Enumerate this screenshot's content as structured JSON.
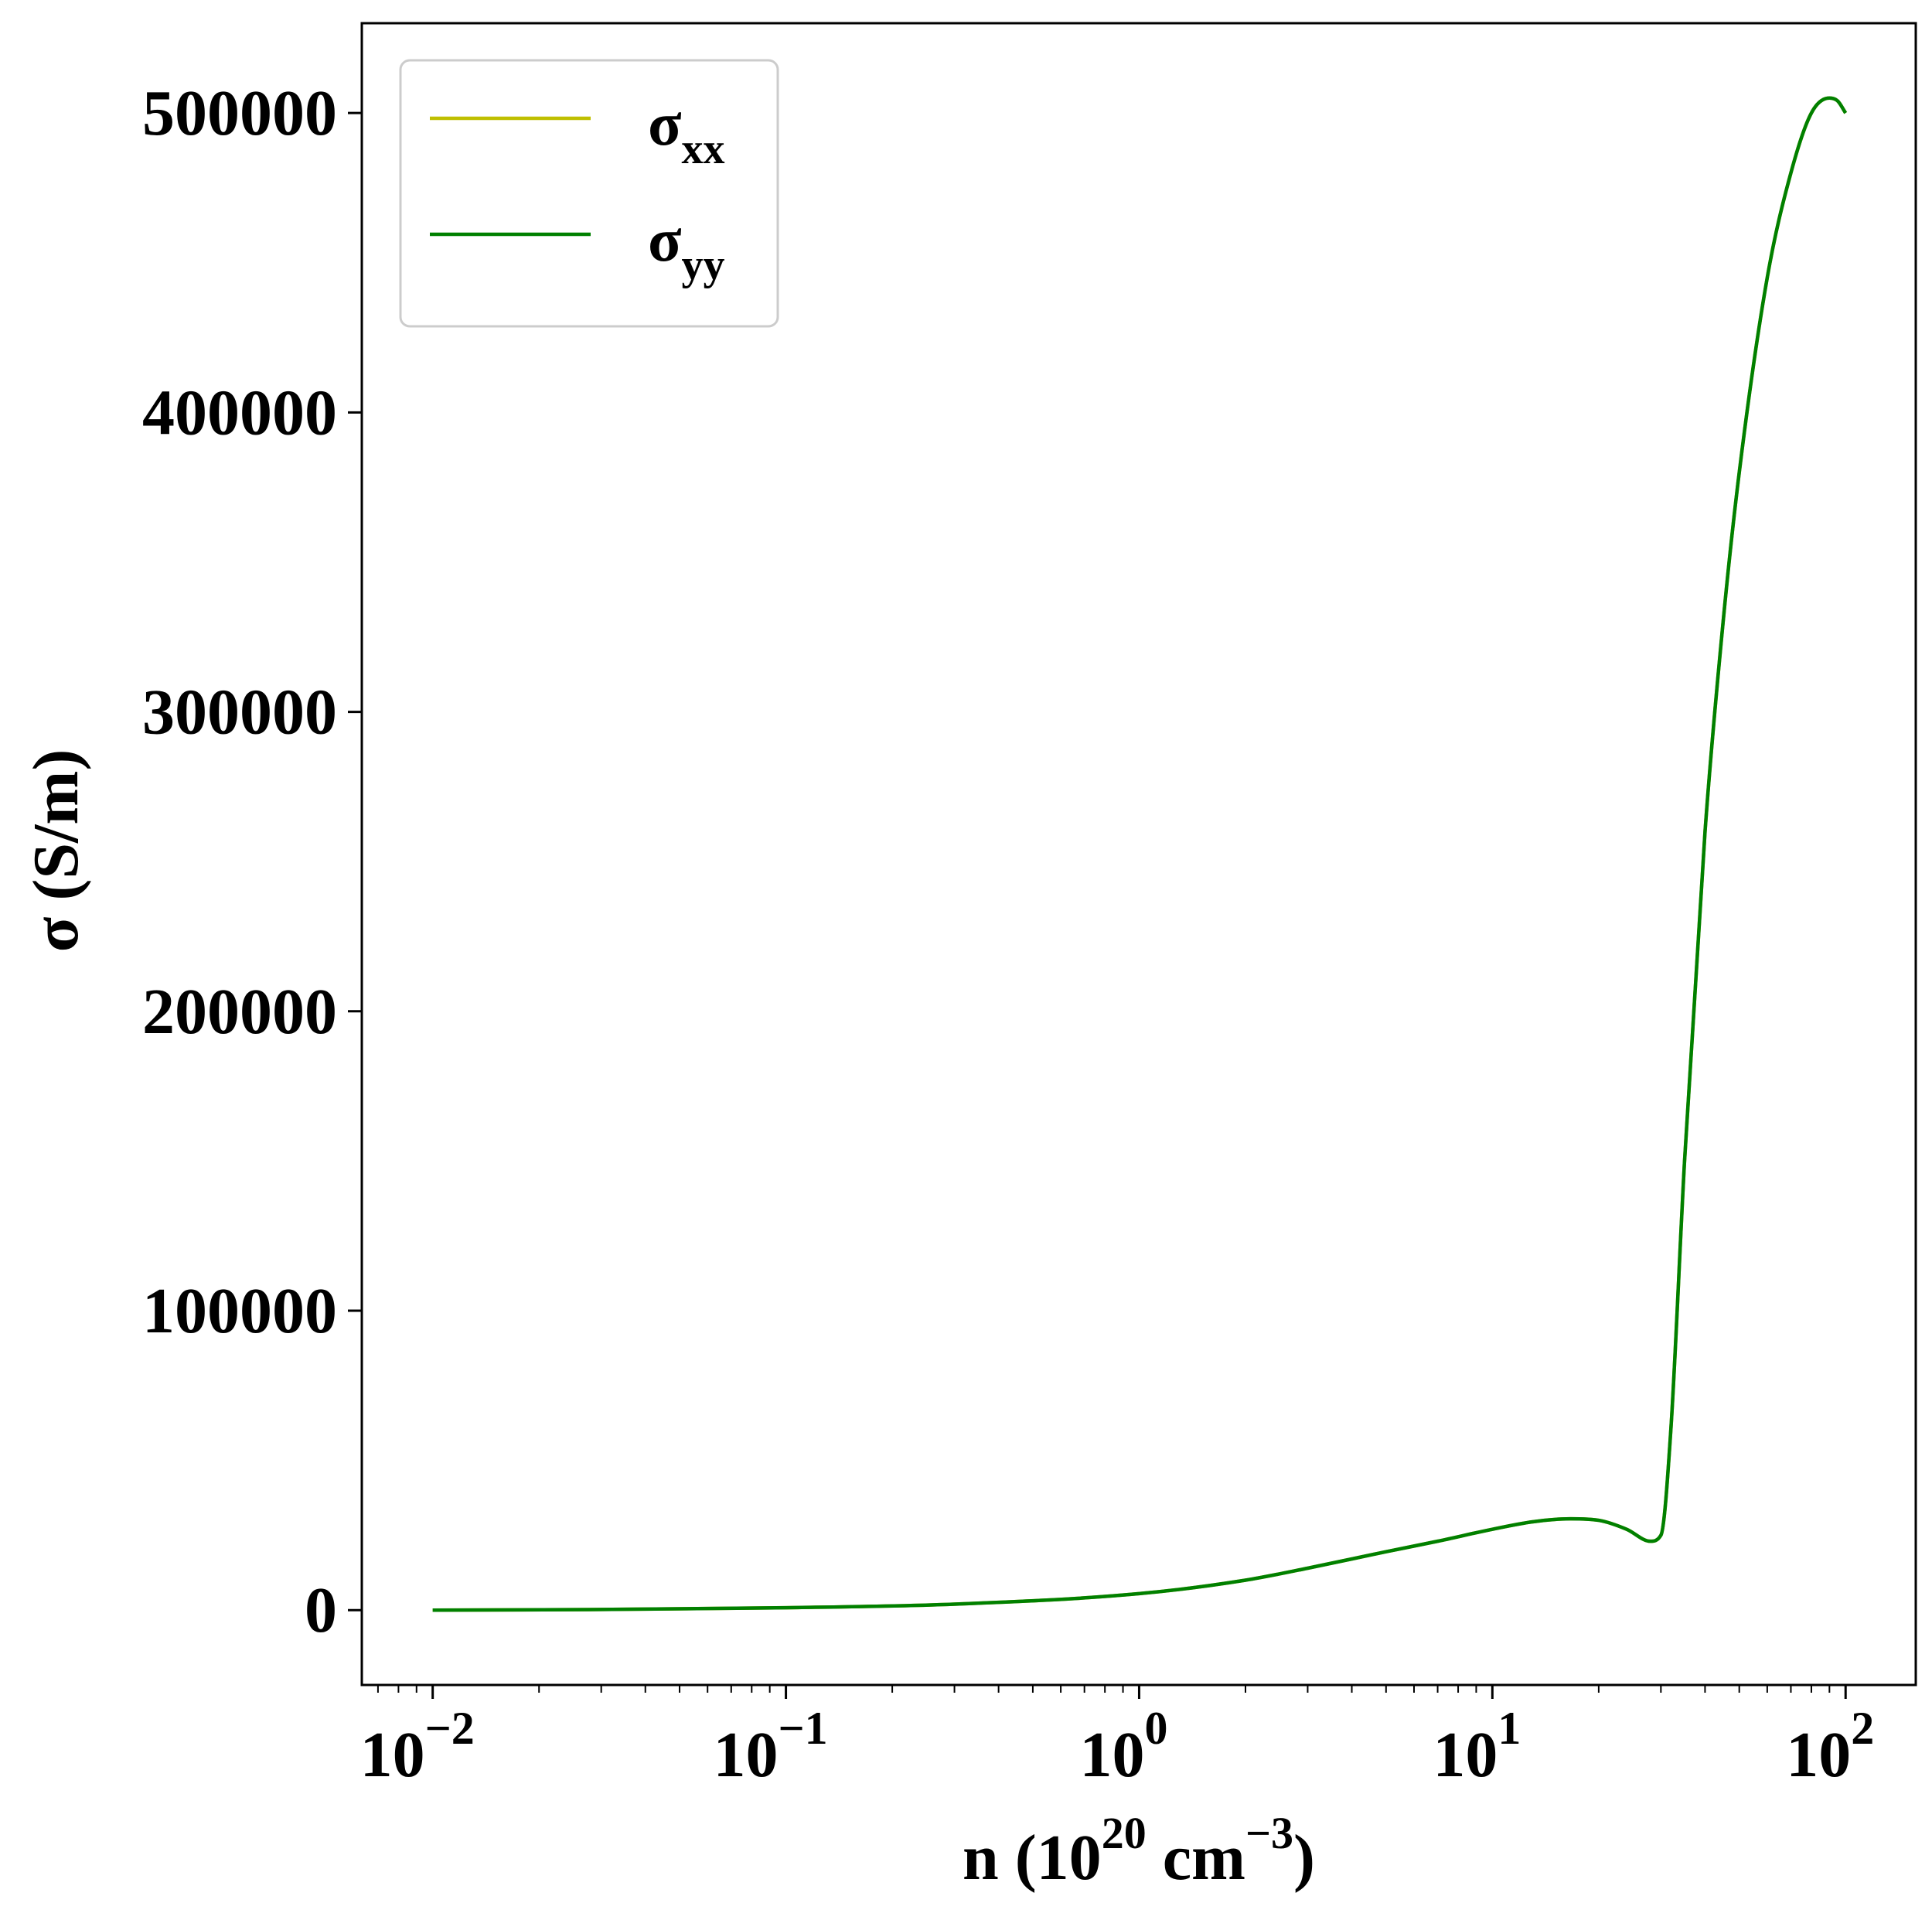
{
  "chart_data": {
    "type": "line",
    "xscale": "log",
    "xlim": [
      0.0063,
      158
    ],
    "ylim": [
      -25000,
      530000
    ],
    "grid": false,
    "legend_position": "top-left",
    "xlabel": {
      "base": "n (10",
      "exp1": "20",
      "mid": " cm",
      "exp2": "−3",
      "end": ")"
    },
    "ylabel": "σ (S/m)",
    "x_ticks": [
      {
        "value": 0.01,
        "base": "10",
        "exp": "−2"
      },
      {
        "value": 0.1,
        "base": "10",
        "exp": "−1"
      },
      {
        "value": 1,
        "base": "10",
        "exp": "0"
      },
      {
        "value": 10,
        "base": "10",
        "exp": "1"
      },
      {
        "value": 100,
        "base": "10",
        "exp": "2"
      }
    ],
    "y_ticks": [
      {
        "value": 0,
        "label": "0"
      },
      {
        "value": 100000,
        "label": "100000"
      },
      {
        "value": 200000,
        "label": "200000"
      },
      {
        "value": 300000,
        "label": "300000"
      },
      {
        "value": 400000,
        "label": "400000"
      },
      {
        "value": 500000,
        "label": "500000"
      }
    ],
    "series": [
      {
        "name": "σ",
        "sub": "xx",
        "color": "#bfbf00",
        "x": [
          0.01,
          0.03,
          0.1,
          0.3,
          1,
          2,
          3,
          5,
          7,
          10,
          13,
          16.6,
          20,
          24,
          28,
          30,
          32,
          35,
          40,
          45,
          50,
          60,
          70,
          80,
          90,
          95,
          100
        ],
        "y": [
          0,
          200,
          800,
          2000,
          5500,
          10000,
          14000,
          19500,
          23000,
          27000,
          29500,
          30500,
          30000,
          27000,
          23000,
          25000,
          60000,
          150000,
          260000,
          330000,
          380000,
          445000,
          480000,
          500000,
          505000,
          504000,
          500000
        ]
      },
      {
        "name": "σ",
        "sub": "yy",
        "color": "#008000",
        "x": [
          0.01,
          0.03,
          0.1,
          0.3,
          1,
          2,
          3,
          5,
          7,
          10,
          13,
          16.6,
          20,
          24,
          28,
          30,
          32,
          35,
          40,
          45,
          50,
          60,
          70,
          80,
          90,
          95,
          100
        ],
        "y": [
          0,
          200,
          800,
          2000,
          5500,
          10000,
          14000,
          19500,
          23000,
          27000,
          29500,
          30500,
          30000,
          27000,
          23000,
          25000,
          60000,
          150000,
          260000,
          330000,
          380000,
          445000,
          480000,
          500000,
          505000,
          504000,
          500000
        ]
      }
    ]
  }
}
